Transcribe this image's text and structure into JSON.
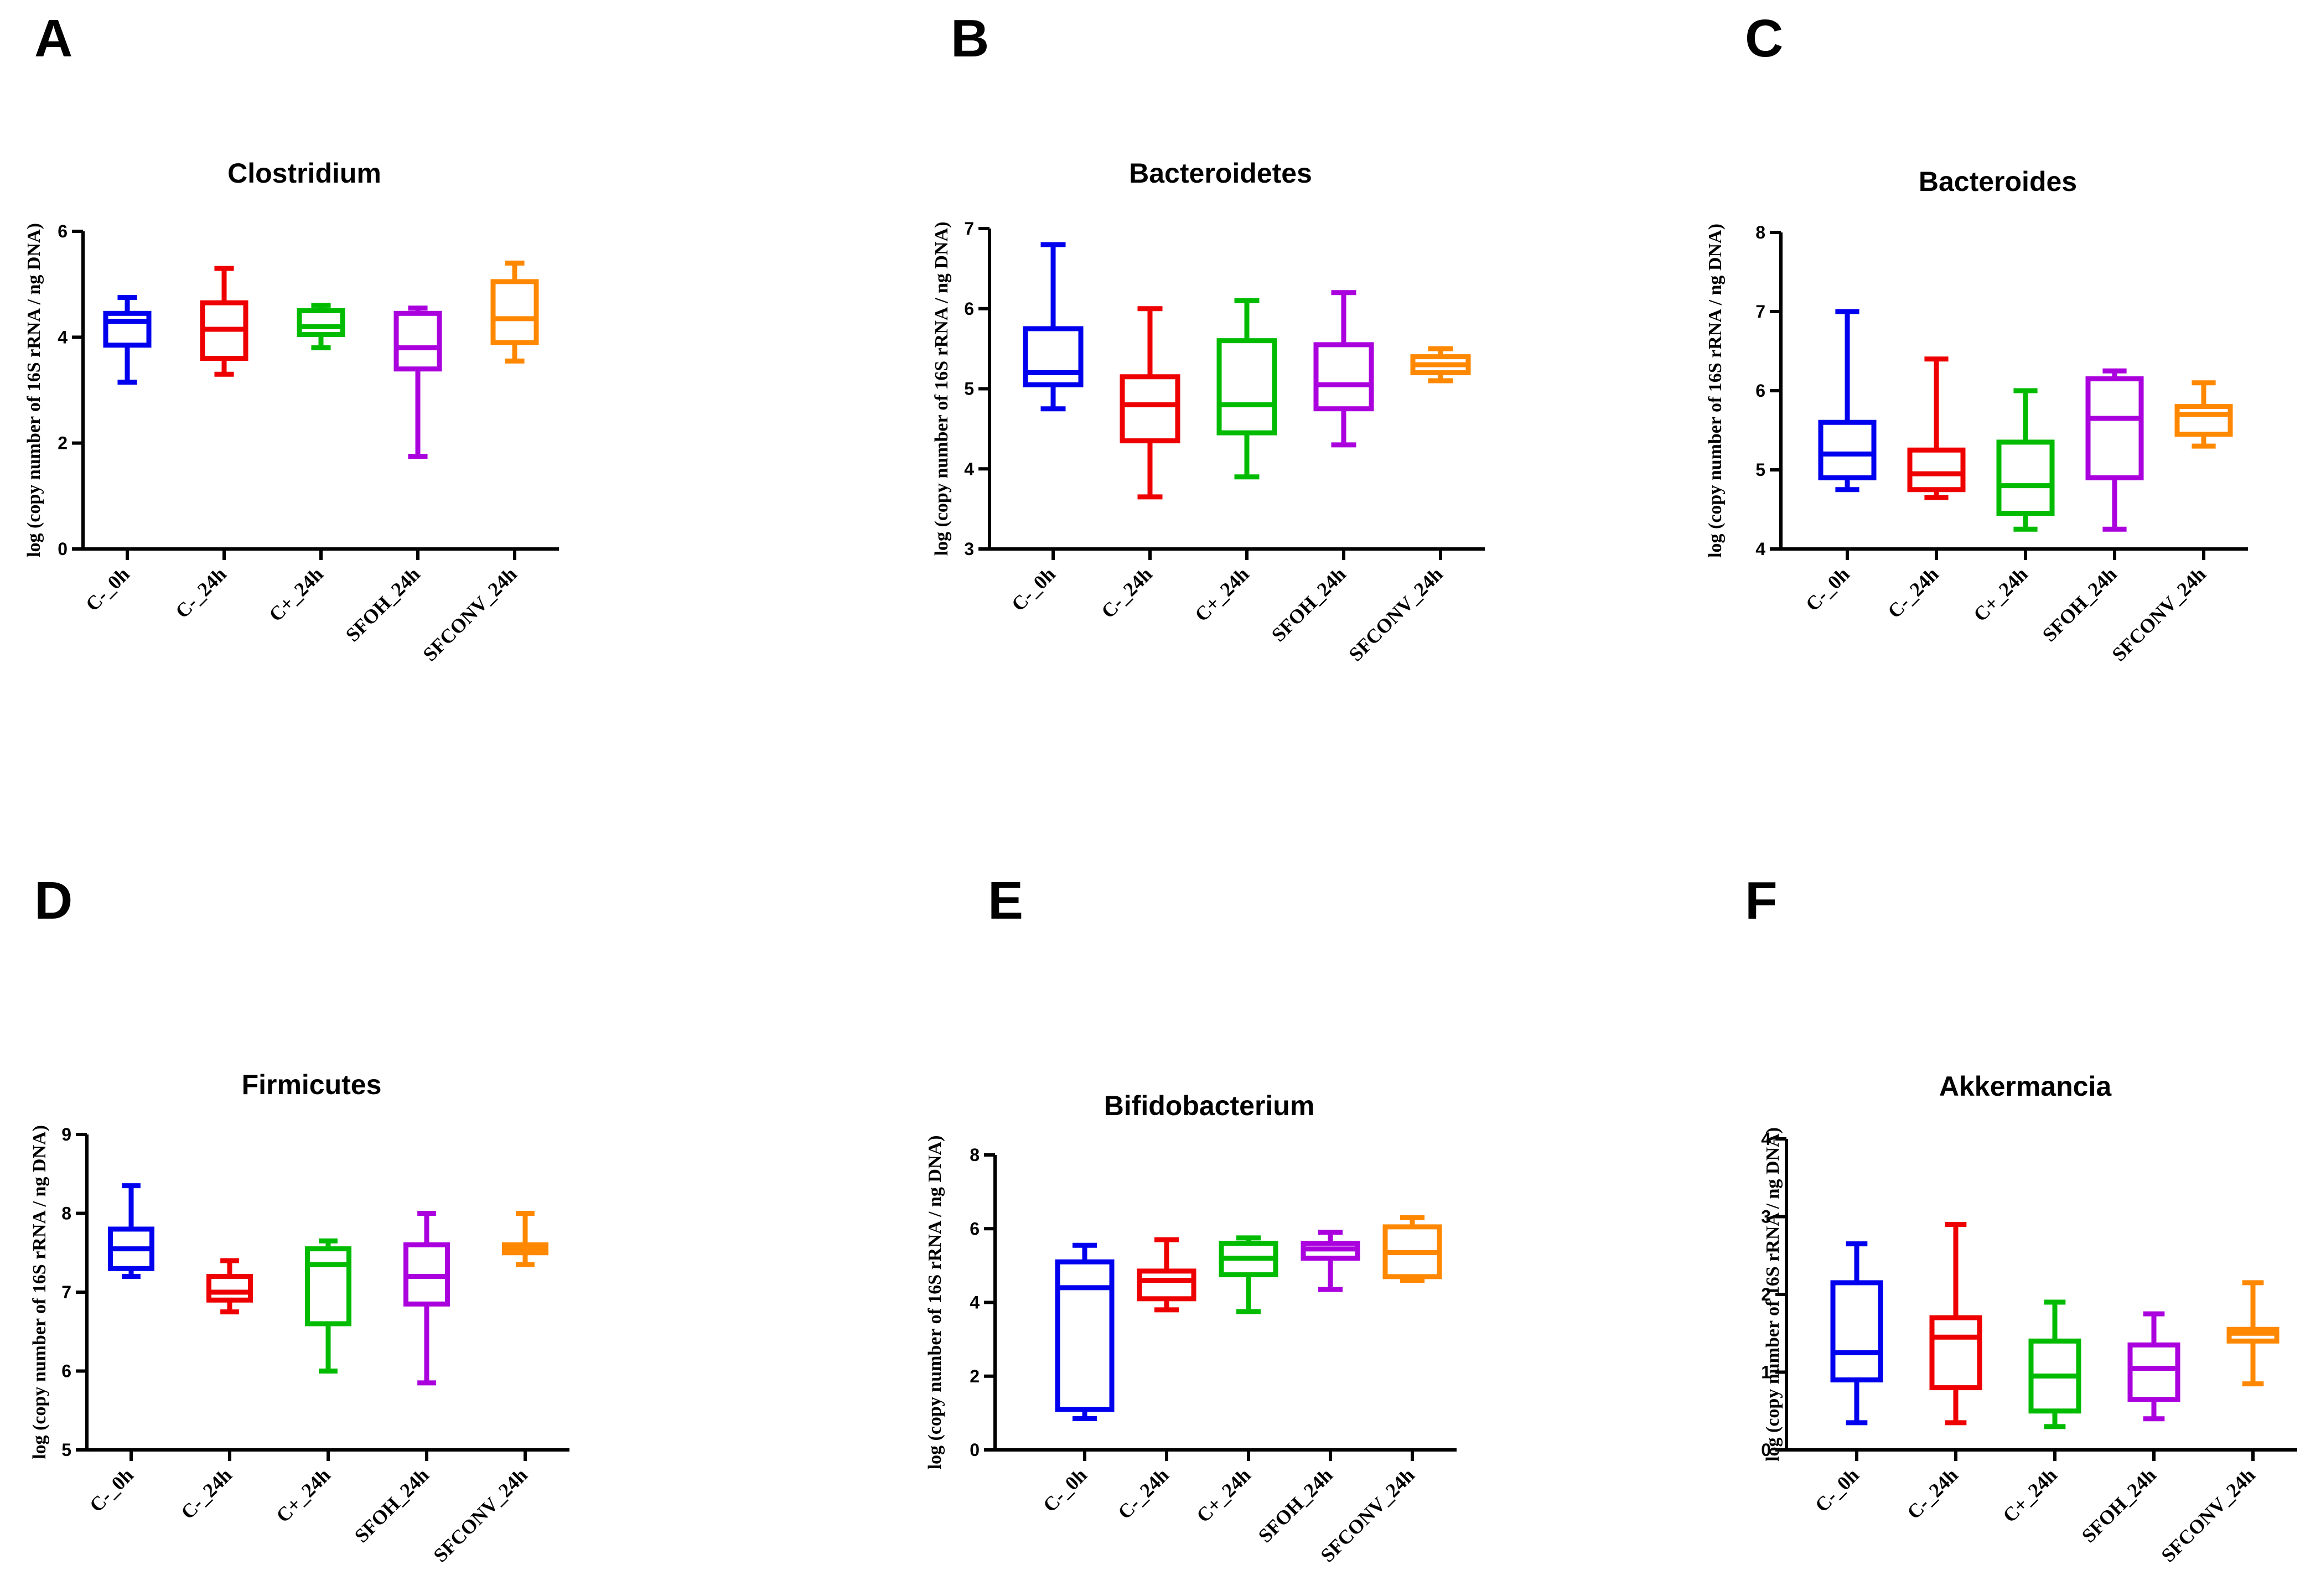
{
  "chart_data": [
    {
      "type": "box",
      "panel": "A",
      "title": "Clostridium",
      "ylabel": "log (copy number of 16S rRNA / ng DNA)",
      "xlabel": "",
      "ylim": [
        0,
        6
      ],
      "yticks": [
        0,
        2,
        4,
        6
      ],
      "categories": [
        "C-_0h",
        "C-_24h",
        "C+_24h",
        "SFOH_24h",
        "SFCONV_24h"
      ],
      "colors": [
        "#0000ee",
        "#ee0000",
        "#00bb00",
        "#aa00dd",
        "#ff8800"
      ],
      "boxes": [
        {
          "min": 3.15,
          "q1": 3.85,
          "median": 4.3,
          "q3": 4.45,
          "max": 4.75
        },
        {
          "min": 3.3,
          "q1": 3.6,
          "median": 4.15,
          "q3": 4.65,
          "max": 5.3
        },
        {
          "min": 3.8,
          "q1": 4.05,
          "median": 4.2,
          "q3": 4.5,
          "max": 4.6
        },
        {
          "min": 1.75,
          "q1": 3.4,
          "median": 3.8,
          "q3": 4.45,
          "max": 4.55
        },
        {
          "min": 3.55,
          "q1": 3.9,
          "median": 4.35,
          "q3": 5.05,
          "max": 5.4
        }
      ]
    },
    {
      "type": "box",
      "panel": "B",
      "title": "Bacteroidetes",
      "ylabel": "log (copy number of 16S rRNA / ng DNA)",
      "xlabel": "",
      "ylim": [
        3,
        7
      ],
      "yticks": [
        3,
        4,
        5,
        6,
        7
      ],
      "categories": [
        "C-_0h",
        "C-_24h",
        "C+_24h",
        "SFOH_24h",
        "SFCONV_24h"
      ],
      "colors": [
        "#0000ee",
        "#ee0000",
        "#00bb00",
        "#aa00dd",
        "#ff8800"
      ],
      "boxes": [
        {
          "min": 4.75,
          "q1": 5.05,
          "median": 5.2,
          "q3": 5.75,
          "max": 6.8
        },
        {
          "min": 3.65,
          "q1": 4.35,
          "median": 4.8,
          "q3": 5.15,
          "max": 6.0
        },
        {
          "min": 3.9,
          "q1": 4.45,
          "median": 4.8,
          "q3": 5.6,
          "max": 6.1
        },
        {
          "min": 4.3,
          "q1": 4.75,
          "median": 5.05,
          "q3": 5.55,
          "max": 6.2
        },
        {
          "min": 5.1,
          "q1": 5.2,
          "median": 5.3,
          "q3": 5.4,
          "max": 5.5
        }
      ]
    },
    {
      "type": "box",
      "panel": "C",
      "title": "Bacteroides",
      "ylabel": "log (copy number of 16S rRNA / ng DNA)",
      "xlabel": "",
      "ylim": [
        4,
        8
      ],
      "yticks": [
        4,
        5,
        6,
        7,
        8
      ],
      "categories": [
        "C-_0h",
        "C-_24h",
        "C+_24h",
        "SFOH_24h",
        "SFCONV_24h"
      ],
      "colors": [
        "#0000ee",
        "#ee0000",
        "#00bb00",
        "#aa00dd",
        "#ff8800"
      ],
      "boxes": [
        {
          "min": 4.75,
          "q1": 4.9,
          "median": 5.2,
          "q3": 5.6,
          "max": 7.0
        },
        {
          "min": 4.65,
          "q1": 4.75,
          "median": 4.95,
          "q3": 5.25,
          "max": 6.4
        },
        {
          "min": 4.25,
          "q1": 4.45,
          "median": 4.8,
          "q3": 5.35,
          "max": 6.0
        },
        {
          "min": 4.25,
          "q1": 4.9,
          "median": 5.65,
          "q3": 6.15,
          "max": 6.25
        },
        {
          "min": 5.3,
          "q1": 5.45,
          "median": 5.7,
          "q3": 5.8,
          "max": 6.1
        }
      ]
    },
    {
      "type": "box",
      "panel": "D",
      "title": "Firmicutes",
      "ylabel": "log (copy number of 16S rRNA / ng DNA)",
      "xlabel": "",
      "ylim": [
        5,
        9
      ],
      "yticks": [
        5,
        6,
        7,
        8,
        9
      ],
      "categories": [
        "C-_0h",
        "C-_24h",
        "C+_24h",
        "SFOH_24h",
        "SFCONV_24h"
      ],
      "colors": [
        "#0000ee",
        "#ee0000",
        "#00bb00",
        "#aa00dd",
        "#ff8800"
      ],
      "boxes": [
        {
          "min": 7.2,
          "q1": 7.3,
          "median": 7.55,
          "q3": 7.8,
          "max": 8.35
        },
        {
          "min": 6.75,
          "q1": 6.9,
          "median": 7.0,
          "q3": 7.2,
          "max": 7.4
        },
        {
          "min": 6.0,
          "q1": 6.6,
          "median": 7.35,
          "q3": 7.55,
          "max": 7.65
        },
        {
          "min": 5.85,
          "q1": 6.85,
          "median": 7.2,
          "q3": 7.6,
          "max": 8.0
        },
        {
          "min": 7.35,
          "q1": 7.5,
          "median": 7.55,
          "q3": 7.6,
          "max": 8.0
        }
      ]
    },
    {
      "type": "box",
      "panel": "E",
      "title": "Bifidobacterium",
      "ylabel": "log (copy number of 16S rRNA / ng DNA)",
      "xlabel": "",
      "ylim": [
        0,
        8
      ],
      "yticks": [
        0,
        2,
        4,
        6,
        8
      ],
      "categories": [
        "C-_0h",
        "C-_24h",
        "C+_24h",
        "SFOH_24h",
        "SFCONV_24h"
      ],
      "colors": [
        "#0000ee",
        "#ee0000",
        "#00bb00",
        "#aa00dd",
        "#ff8800"
      ],
      "boxes": [
        {
          "min": 0.85,
          "q1": 1.1,
          "median": 4.4,
          "q3": 5.1,
          "max": 5.55
        },
        {
          "min": 3.8,
          "q1": 4.1,
          "median": 4.6,
          "q3": 4.85,
          "max": 5.7
        },
        {
          "min": 3.75,
          "q1": 4.75,
          "median": 5.2,
          "q3": 5.6,
          "max": 5.75
        },
        {
          "min": 4.35,
          "q1": 5.2,
          "median": 5.45,
          "q3": 5.6,
          "max": 5.9
        },
        {
          "min": 4.6,
          "q1": 4.7,
          "median": 5.35,
          "q3": 6.05,
          "max": 6.3
        }
      ]
    },
    {
      "type": "box",
      "panel": "F",
      "title": "Akkermancia",
      "ylabel": "log (copy number of 16S rRNA / ng DNA)",
      "xlabel": "",
      "ylim": [
        0,
        4
      ],
      "yticks": [
        0,
        1,
        2,
        3,
        4
      ],
      "categories": [
        "C-_0h",
        "C-_24h",
        "C+_24h",
        "SFOH_24h",
        "SFCONV_24h"
      ],
      "colors": [
        "#0000ee",
        "#ee0000",
        "#00bb00",
        "#aa00dd",
        "#ff8800"
      ],
      "boxes": [
        {
          "min": 0.35,
          "q1": 0.9,
          "median": 1.25,
          "q3": 2.15,
          "max": 2.65
        },
        {
          "min": 0.35,
          "q1": 0.8,
          "median": 1.45,
          "q3": 1.7,
          "max": 2.9
        },
        {
          "min": 0.3,
          "q1": 0.5,
          "median": 0.95,
          "q3": 1.4,
          "max": 1.9
        },
        {
          "min": 0.4,
          "q1": 0.65,
          "median": 1.05,
          "q3": 1.35,
          "max": 1.75
        },
        {
          "min": 0.85,
          "q1": 1.4,
          "median": 1.5,
          "q3": 1.55,
          "max": 2.15
        }
      ]
    }
  ]
}
